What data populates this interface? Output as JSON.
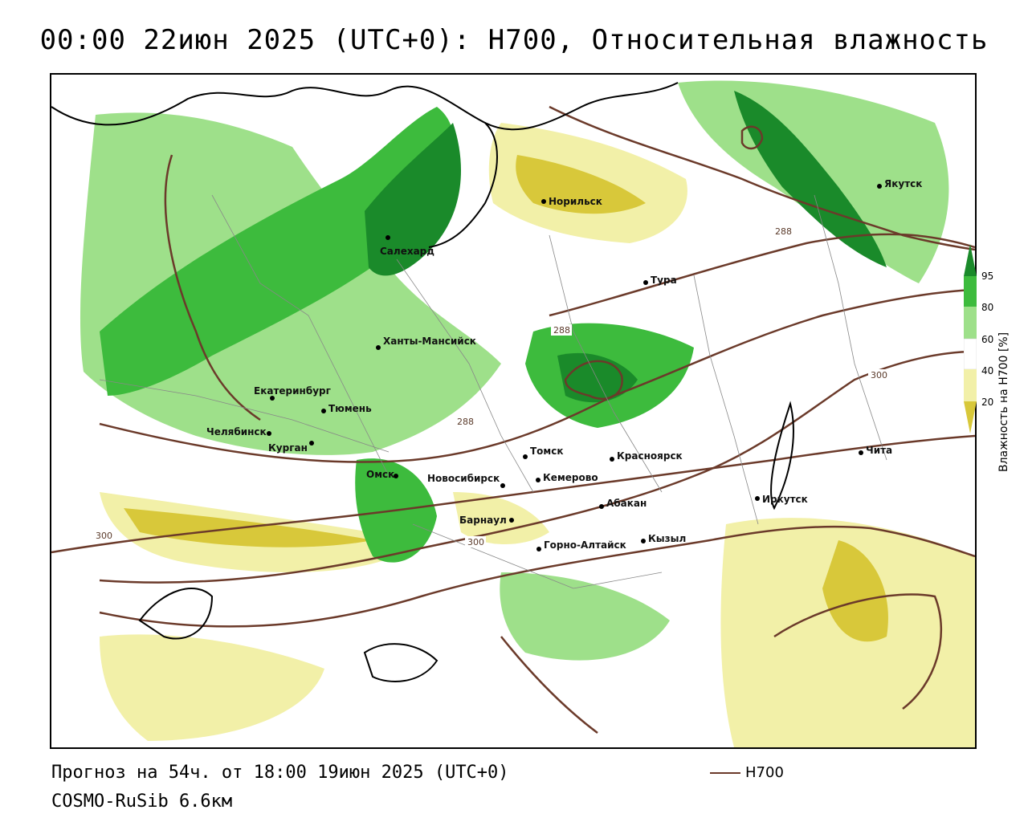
{
  "title": "00:00 22июн 2025 (UTC+0): H700, Относительная влажность",
  "footer": {
    "forecast": "Прогноз на 54ч. от 18:00 19июн 2025 (UTC+0)",
    "model": "COSMO-RuSib 6.6км"
  },
  "legend": {
    "contour_label": "H700",
    "contour_color": "#6b3a2a"
  },
  "colorbar": {
    "title": "Влажность на H700 [%]",
    "ticks": [
      "95",
      "80",
      "60",
      "40",
      "20"
    ],
    "colors": [
      "#1a8a2a",
      "#3dbb3d",
      "#9ee08a",
      "#ffffff",
      "#f2f0a8",
      "#d8c83a"
    ]
  },
  "cities": [
    {
      "name": "Норильск"
    },
    {
      "name": "Якутск"
    },
    {
      "name": "Салехард"
    },
    {
      "name": "Тура"
    },
    {
      "name": "Ханты-Мансийск"
    },
    {
      "name": "Екатеринбург"
    },
    {
      "name": "Тюмень"
    },
    {
      "name": "Челябинск"
    },
    {
      "name": "Курган"
    },
    {
      "name": "Омск"
    },
    {
      "name": "Томск"
    },
    {
      "name": "Красноярск"
    },
    {
      "name": "Новосибирск"
    },
    {
      "name": "Кемерово"
    },
    {
      "name": "Абакан"
    },
    {
      "name": "Барнаул"
    },
    {
      "name": "Иркутск"
    },
    {
      "name": "Чита"
    },
    {
      "name": "Горно-Алтайск"
    },
    {
      "name": "Кызыл"
    }
  ],
  "contour_labels": [
    "288",
    "288",
    "288",
    "300",
    "300",
    "300"
  ]
}
